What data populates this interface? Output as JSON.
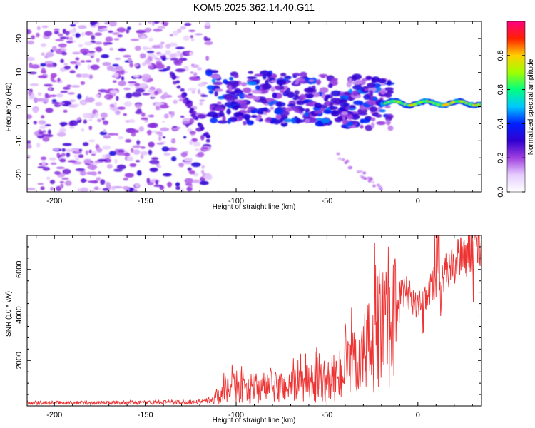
{
  "chart_data": [
    {
      "type": "heatmap",
      "title": "KOM5.2025.362.14.40.G11",
      "xlabel": "Height of straight line (km)",
      "ylabel": "Frequency (Hz)",
      "xlim": [
        -215,
        35
      ],
      "ylim": [
        -25,
        25
      ],
      "xticks": [
        -200,
        -150,
        -100,
        -50,
        0
      ],
      "xtick_labels": [
        "-200",
        "-150",
        "-100",
        "-50",
        "0"
      ],
      "yticks": [
        20,
        10,
        0,
        -10,
        -20
      ],
      "ytick_labels": [
        "20",
        "10",
        "0",
        "-10",
        "-20"
      ],
      "colorbar": {
        "label": "Normalized spectral amplitude",
        "range": [
          0,
          1
        ],
        "ticks": [
          0.0,
          0.2,
          0.4,
          0.6,
          0.8
        ],
        "tick_labels": [
          "0.0",
          "0.2",
          "0.4",
          "0.6",
          "0.8"
        ],
        "colormap": [
          "#ffffff",
          "#e6ccff",
          "#a040e0",
          "#3000d0",
          "#0020ff",
          "#00c8ff",
          "#00ff80",
          "#a0ff00",
          "#ffd000",
          "#ff2000",
          "#ff0080"
        ]
      },
      "features": [
        {
          "name": "scattered background noise",
          "x": [
            -215,
            -115
          ],
          "y": [
            -25,
            25
          ],
          "level": 0.1
        },
        {
          "name": "spectral band",
          "x": [
            -115,
            -15
          ],
          "y": [
            -7,
            8
          ],
          "level": 0.3
        },
        {
          "name": "strong narrow line",
          "x": [
            -20,
            35
          ],
          "y": [
            0,
            2
          ],
          "level": 0.75
        }
      ]
    },
    {
      "type": "line",
      "xlabel": "Height of straight line (km)",
      "ylabel": "SNR (10 * v/v)",
      "xlim": [
        -215,
        35
      ],
      "ylim": [
        0,
        7500
      ],
      "xticks": [
        -200,
        -150,
        -100,
        -50,
        0
      ],
      "xtick_labels": [
        "-200",
        "-150",
        "-100",
        "-50",
        "0"
      ],
      "yticks": [
        2000,
        4000,
        6000
      ],
      "ytick_labels": [
        "2000",
        "4000",
        "6000"
      ],
      "series": [
        {
          "name": "SNR",
          "color": "#ee3333",
          "x": [
            -215,
            -200,
            -180,
            -160,
            -140,
            -120,
            -115,
            -110,
            -100,
            -90,
            -80,
            -70,
            -60,
            -50,
            -40,
            -30,
            -25,
            -20,
            -15,
            -13,
            -10,
            -5,
            0,
            5,
            10,
            15,
            20,
            25,
            30,
            35
          ],
          "y": [
            150,
            150,
            150,
            160,
            170,
            190,
            250,
            400,
            800,
            700,
            750,
            800,
            900,
            1000,
            1300,
            2000,
            2600,
            3200,
            3000,
            4600,
            4900,
            5000,
            4300,
            4900,
            5600,
            5800,
            6300,
            6600,
            6800,
            7000
          ]
        }
      ]
    }
  ]
}
